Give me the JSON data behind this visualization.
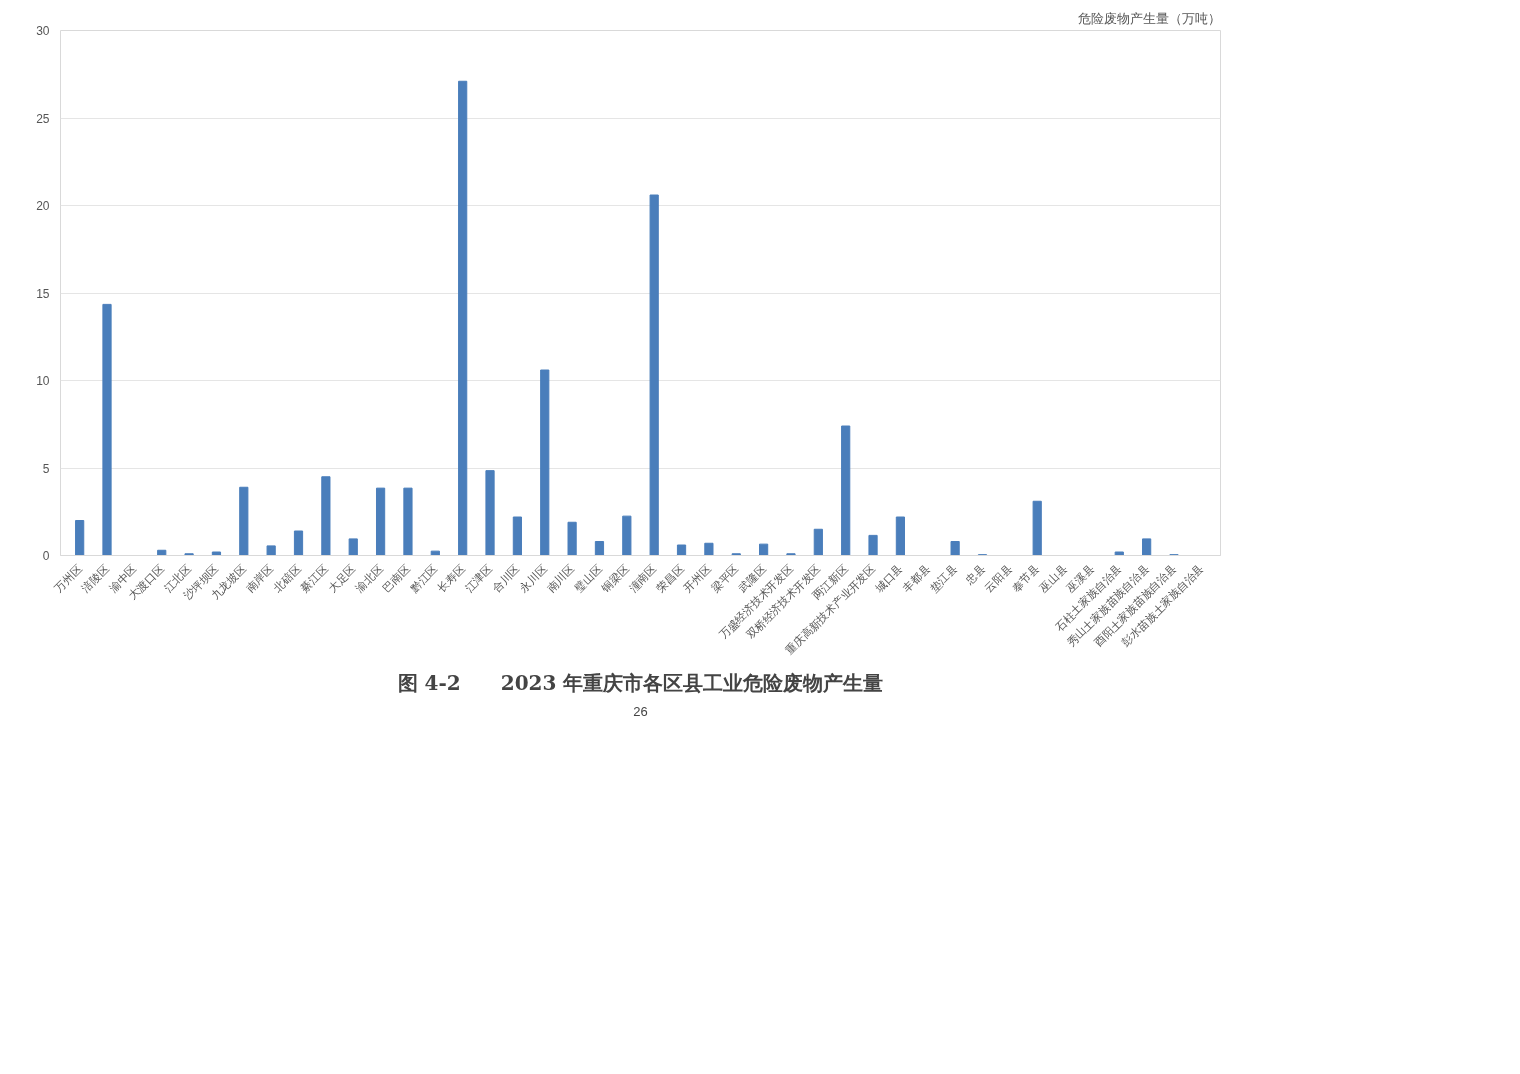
{
  "chart_data": {
    "type": "bar",
    "title": "图 4-2　　2023 年重庆市各区县工业危险废物产生量",
    "ylabel": "危险废物产生量（万吨）",
    "categories": [
      "万州区",
      "涪陵区",
      "渝中区",
      "大渡口区",
      "江北区",
      "沙坪坝区",
      "九龙坡区",
      "南岸区",
      "北碚区",
      "綦江区",
      "大足区",
      "渝北区",
      "巴南区",
      "黔江区",
      "长寿区",
      "江津区",
      "合川区",
      "永川区",
      "南川区",
      "璧山区",
      "铜梁区",
      "潼南区",
      "荣昌区",
      "开州区",
      "梁平区",
      "武隆区",
      "万盛经济技术开发区",
      "双桥经济技术开发区",
      "两江新区",
      "重庆高新技术产业开发区",
      "城口县",
      "丰都县",
      "垫江县",
      "忠县",
      "云阳县",
      "奉节县",
      "巫山县",
      "巫溪县",
      "石柱土家族自治县",
      "秀山土家族苗族自治县",
      "酉阳土家族苗族自治县",
      "彭水苗族土家族自治县"
    ],
    "values": [
      2.0,
      14.35,
      0,
      0.3,
      0.1,
      0.2,
      3.9,
      0.55,
      1.4,
      4.5,
      0.95,
      3.85,
      3.85,
      0.25,
      27.1,
      4.85,
      2.2,
      10.6,
      1.9,
      0.8,
      2.25,
      20.6,
      0.6,
      0.7,
      0.1,
      0.65,
      0.1,
      1.5,
      7.4,
      1.15,
      2.2,
      0,
      0.8,
      0.05,
      0,
      3.1,
      0,
      0,
      0.2,
      0.95,
      0.05,
      0
    ],
    "color": "#4a7ebb",
    "ylim": [
      0,
      30
    ],
    "yticks": [
      0,
      5,
      10,
      15,
      20,
      25,
      30
    ],
    "grid": "y",
    "annotations": [
      "26"
    ]
  }
}
